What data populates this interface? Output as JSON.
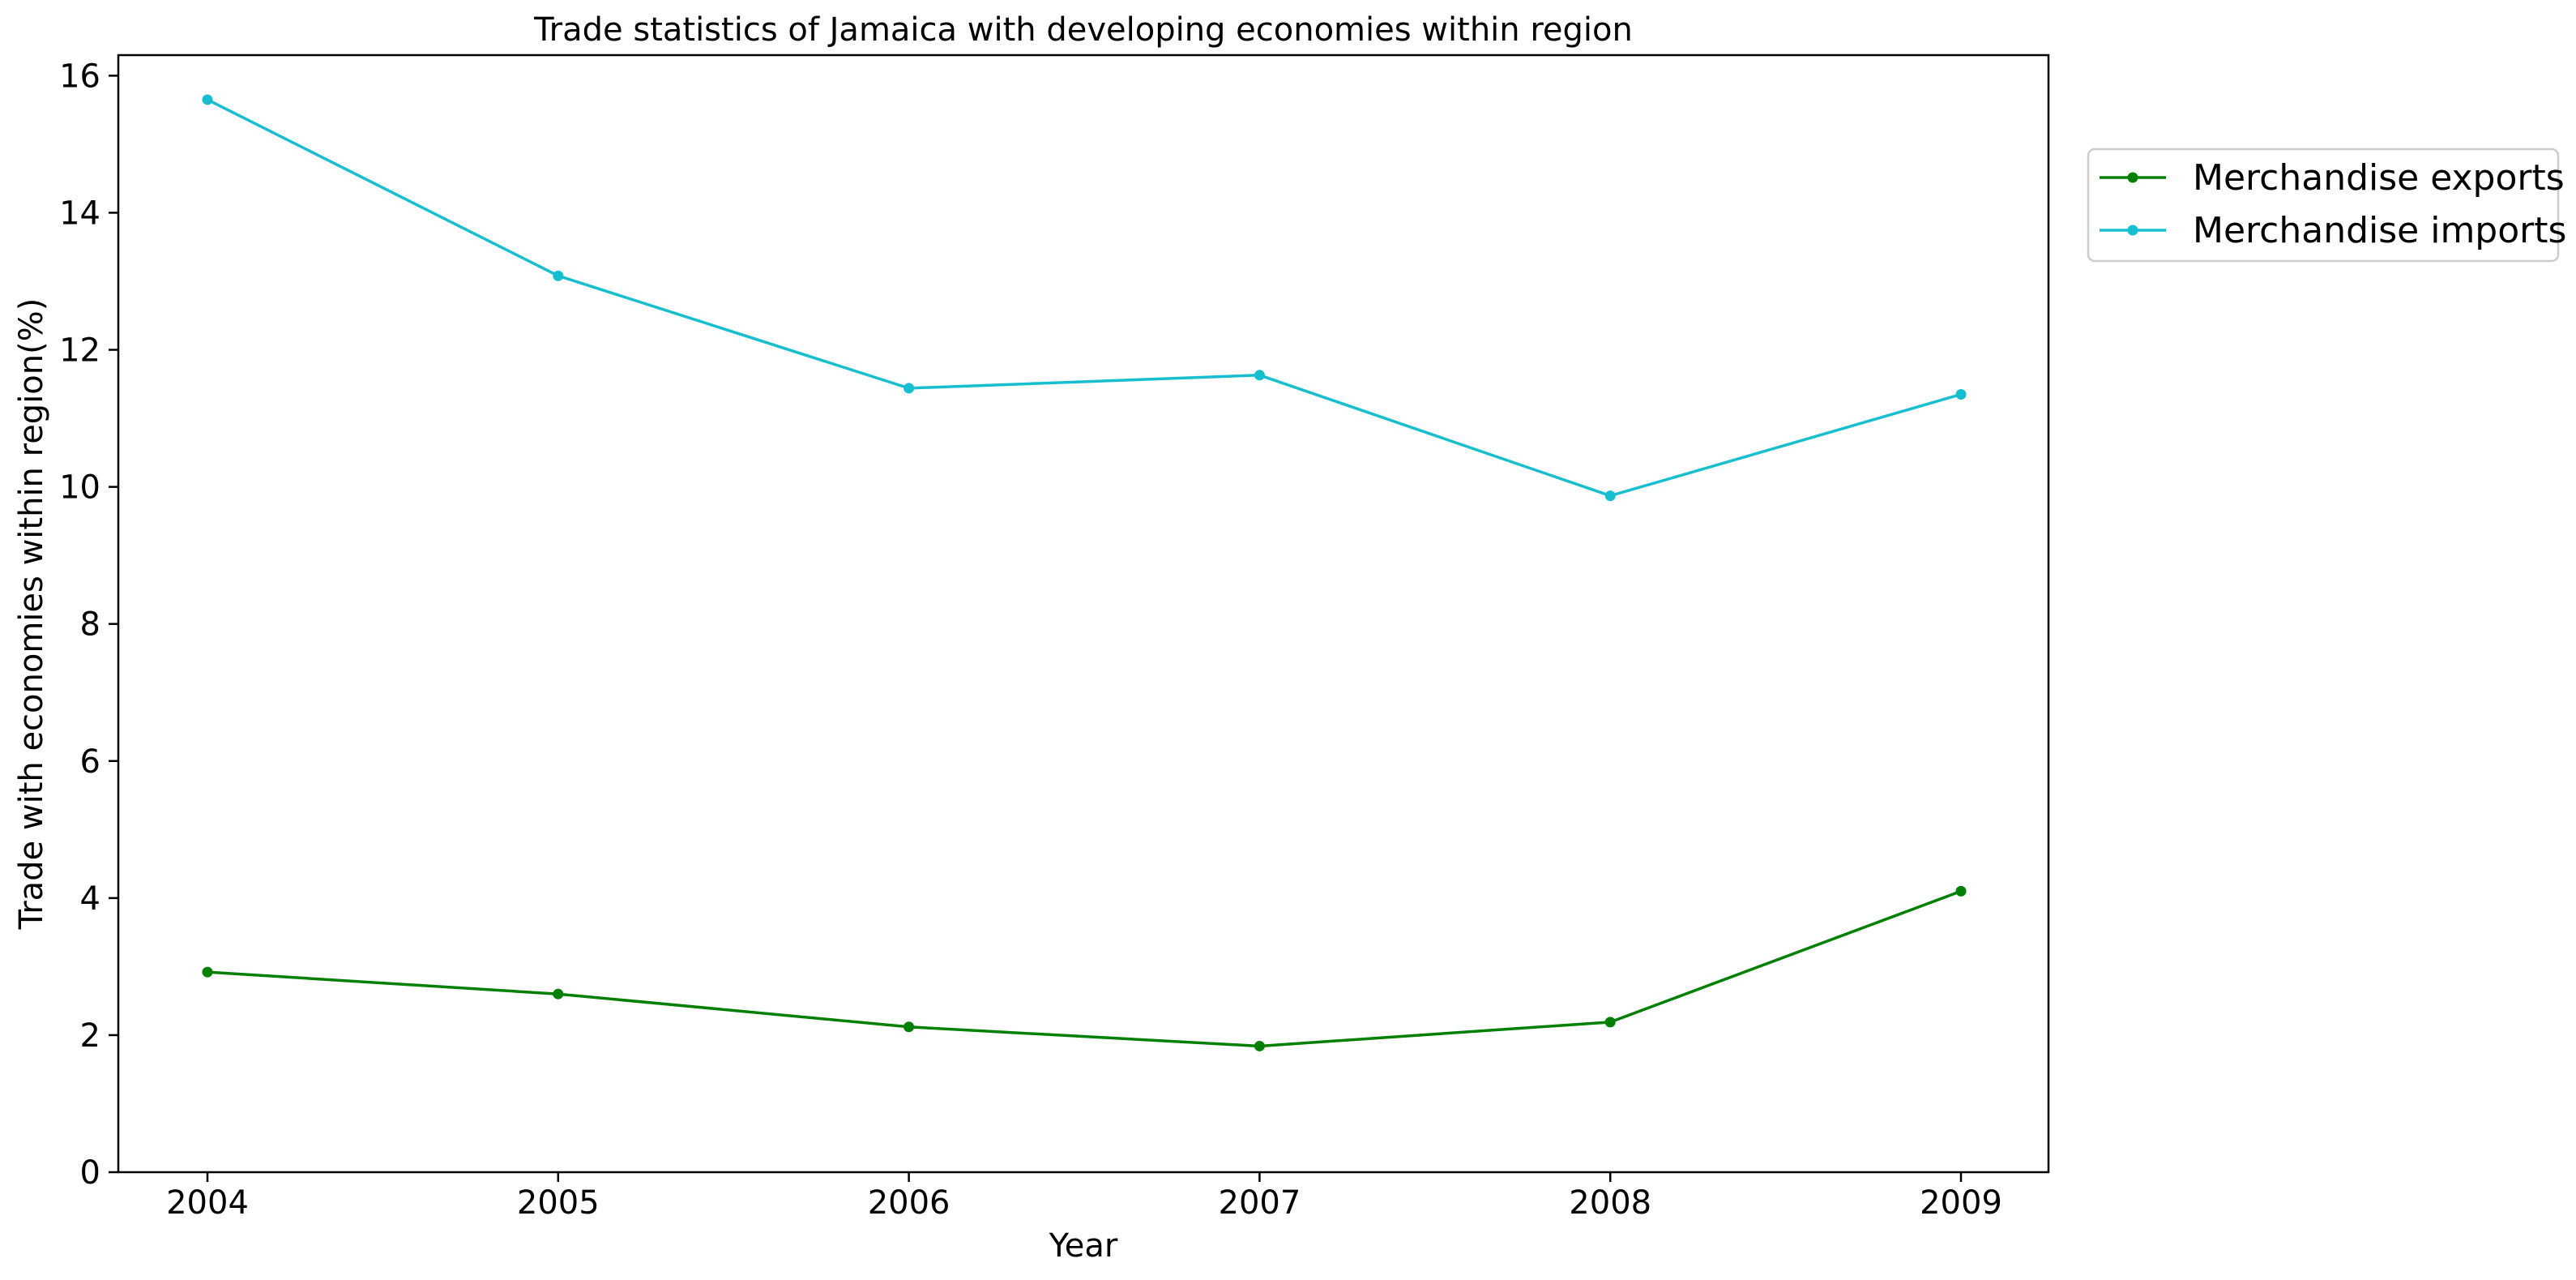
{
  "chart_data": {
    "type": "line",
    "title": "Trade statistics of Jamaica with developing economies within region",
    "xlabel": "Year",
    "ylabel": "Trade with economies within region(%)",
    "categories": [
      "2004",
      "2005",
      "2006",
      "2007",
      "2008",
      "2009"
    ],
    "x": [
      2004,
      2005,
      2006,
      2007,
      2008,
      2009
    ],
    "yticks": [
      "0",
      "2",
      "4",
      "6",
      "8",
      "10",
      "12",
      "14",
      "16"
    ],
    "ylim": [
      0,
      16.3
    ],
    "grid": false,
    "legend_position": "top-right outside",
    "series": [
      {
        "name": "Merchandise exports",
        "color": "#008000",
        "values": [
          2.92,
          2.6,
          2.12,
          1.84,
          2.19,
          4.1
        ]
      },
      {
        "name": "Merchandise imports",
        "color": "#17becf",
        "values": [
          15.65,
          13.08,
          11.44,
          11.63,
          9.87,
          11.35
        ]
      }
    ]
  }
}
